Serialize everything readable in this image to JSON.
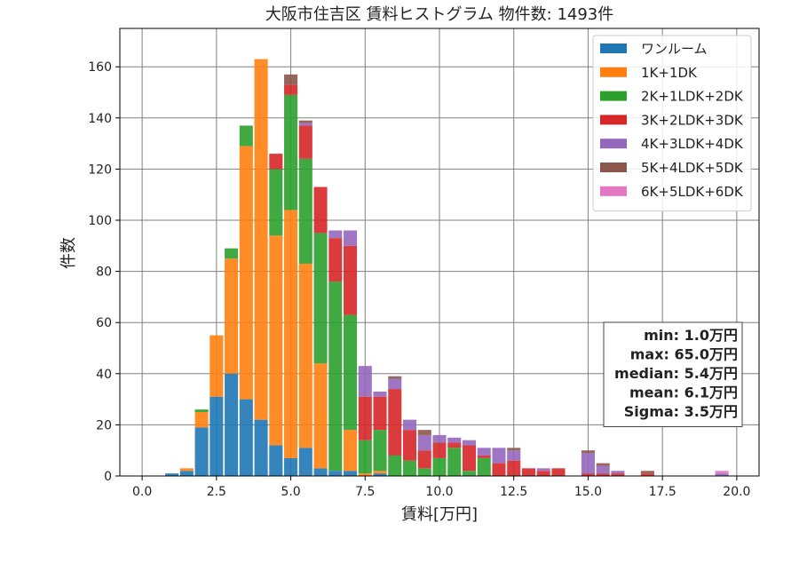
{
  "chart_data": {
    "type": "bar",
    "stacked": true,
    "title": "大阪市住吉区 賃料ヒストグラム  物件数: 1493件",
    "xlabel": "賃料[万円]",
    "ylabel": "件数",
    "xlim": [
      -0.75,
      20.75
    ],
    "ylim": [
      0,
      175
    ],
    "xticks": [
      0,
      2.5,
      5,
      7.5,
      10,
      12.5,
      15,
      17.5,
      20
    ],
    "xtick_labels": [
      "0.0",
      "2.5",
      "5.0",
      "7.5",
      "10.0",
      "12.5",
      "15.0",
      "17.5",
      "20.0"
    ],
    "yticks": [
      0,
      20,
      40,
      60,
      80,
      100,
      120,
      140,
      160
    ],
    "ytick_labels": [
      "0",
      "20",
      "40",
      "60",
      "80",
      "100",
      "120",
      "140",
      "160"
    ],
    "grid": true,
    "legend_position": "top-right",
    "bin_width": 0.5,
    "bins": [
      1.0,
      1.5,
      2.0,
      2.5,
      3.0,
      3.5,
      4.0,
      4.5,
      5.0,
      5.5,
      6.0,
      6.5,
      7.0,
      7.5,
      8.0,
      8.5,
      9.0,
      9.5,
      10.0,
      10.5,
      11.0,
      11.5,
      12.0,
      12.5,
      13.0,
      13.5,
      14.0,
      14.5,
      15.0,
      15.5,
      16.0,
      16.5,
      17.0,
      17.5,
      18.0,
      18.5,
      19.0,
      19.5
    ],
    "series": [
      {
        "name": "ワンルーム",
        "color": "#1f77b4",
        "values": [
          1,
          2,
          19,
          31,
          40,
          30,
          22,
          12,
          7,
          11,
          3,
          2,
          2,
          0,
          1,
          0,
          0,
          0,
          0,
          0,
          0,
          0,
          0,
          0,
          0,
          0,
          0,
          0,
          0,
          0,
          0,
          0,
          0,
          0,
          0,
          0,
          0,
          0
        ]
      },
      {
        "name": "1K+1DK",
        "color": "#ff7f0e",
        "values": [
          0,
          1,
          6,
          24,
          45,
          99,
          141,
          82,
          97,
          72,
          41,
          0,
          16,
          1,
          1,
          0,
          0,
          0,
          0,
          0,
          0,
          0,
          0,
          0,
          0,
          0,
          0,
          0,
          0,
          0,
          0,
          0,
          0,
          0,
          0,
          0,
          0,
          0
        ]
      },
      {
        "name": "2K+1LDK+2DK",
        "color": "#2ca02c",
        "values": [
          0,
          0,
          1,
          0,
          4,
          8,
          0,
          26,
          45,
          41,
          51,
          74,
          45,
          13,
          16,
          8,
          6,
          3,
          7,
          11,
          2,
          7,
          0,
          0,
          0,
          0,
          0,
          0,
          0,
          0,
          0,
          0,
          0,
          0,
          0,
          0,
          0,
          0
        ]
      },
      {
        "name": "3K+2LDK+3DK",
        "color": "#d62728",
        "values": [
          0,
          0,
          0,
          0,
          0,
          0,
          0,
          6,
          4,
          13,
          18,
          17,
          27,
          17,
          13,
          26,
          12,
          7,
          6,
          2,
          10,
          1,
          5,
          6,
          3,
          2,
          3,
          0,
          1,
          1,
          1,
          0,
          1,
          0,
          0,
          0,
          0,
          0
        ]
      },
      {
        "name": "4K+3LDK+4DK",
        "color": "#9467bd",
        "values": [
          0,
          0,
          0,
          0,
          0,
          0,
          0,
          0,
          0,
          1,
          0,
          3,
          6,
          12,
          2,
          4,
          4,
          6,
          3,
          2,
          2,
          3,
          6,
          4,
          0,
          1,
          0,
          0,
          8,
          3,
          1,
          0,
          0,
          0,
          0,
          0,
          0,
          1
        ]
      },
      {
        "name": "5K+4LDK+5DK",
        "color": "#8c564b",
        "values": [
          0,
          0,
          0,
          0,
          0,
          0,
          0,
          0,
          4,
          1,
          0,
          0,
          0,
          0,
          0,
          1,
          0,
          2,
          0,
          0,
          0,
          0,
          0,
          1,
          0,
          0,
          0,
          0,
          1,
          1,
          0,
          0,
          1,
          0,
          0,
          0,
          0,
          0
        ]
      },
      {
        "name": "6K+5LDK+6DK",
        "color": "#e377c2",
        "values": [
          0,
          0,
          0,
          0,
          0,
          0,
          0,
          0,
          0,
          0,
          0,
          0,
          0,
          0,
          0,
          0,
          0,
          0,
          0,
          0,
          0,
          0,
          0,
          0,
          0,
          0,
          0,
          0,
          0,
          0,
          0,
          0,
          0,
          0,
          0,
          0,
          0,
          1
        ]
      }
    ],
    "stats_box": {
      "position": "right-middle",
      "lines": [
        "min: 1.0万円",
        "max: 65.0万円",
        "median: 5.4万円",
        "mean: 6.1万円",
        "Sigma: 3.5万円"
      ]
    }
  }
}
